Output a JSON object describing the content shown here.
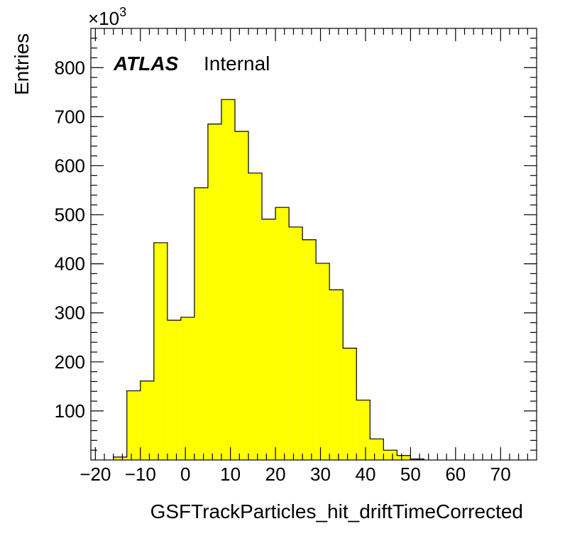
{
  "chart_data": {
    "type": "histogram",
    "xlabel": "GSFTrackParticles_hit_driftTimeCorrected",
    "ylabel": "Entries",
    "y_multiplier": "×10",
    "y_multiplier_exp": "3",
    "atlas_label": "ATLAS",
    "atlas_status": "Internal",
    "xlim": [
      -21,
      78
    ],
    "ylim": [
      0,
      880
    ],
    "x_ticks": [
      -20,
      -10,
      0,
      10,
      20,
      30,
      40,
      50,
      60,
      70
    ],
    "x_tick_labels": [
      "−20",
      "−10",
      "0",
      "10",
      "20",
      "30",
      "40",
      "50",
      "60",
      "70"
    ],
    "y_ticks": [
      100,
      200,
      300,
      400,
      500,
      600,
      700,
      800
    ],
    "y_tick_labels": [
      "100",
      "200",
      "300",
      "400",
      "500",
      "600",
      "700",
      "800"
    ],
    "fill_color": "#ffff00",
    "line_color": "#000000",
    "bin_width": 3,
    "bins": [
      {
        "x0": -16,
        "x1": -13,
        "value": 6
      },
      {
        "x0": -13,
        "x1": -10,
        "value": 141
      },
      {
        "x0": -10,
        "x1": -7,
        "value": 161
      },
      {
        "x0": -7,
        "x1": -4,
        "value": 443
      },
      {
        "x0": -4,
        "x1": -1,
        "value": 285
      },
      {
        "x0": -1,
        "x1": 2,
        "value": 291
      },
      {
        "x0": 2,
        "x1": 5,
        "value": 555
      },
      {
        "x0": 5,
        "x1": 8,
        "value": 685
      },
      {
        "x0": 8,
        "x1": 11,
        "value": 735
      },
      {
        "x0": 11,
        "x1": 14,
        "value": 670
      },
      {
        "x0": 14,
        "x1": 17,
        "value": 585
      },
      {
        "x0": 17,
        "x1": 20,
        "value": 491
      },
      {
        "x0": 20,
        "x1": 23,
        "value": 515
      },
      {
        "x0": 23,
        "x1": 26,
        "value": 475
      },
      {
        "x0": 26,
        "x1": 29,
        "value": 449
      },
      {
        "x0": 29,
        "x1": 32,
        "value": 401
      },
      {
        "x0": 32,
        "x1": 35,
        "value": 347
      },
      {
        "x0": 35,
        "x1": 38,
        "value": 228
      },
      {
        "x0": 38,
        "x1": 41,
        "value": 122
      },
      {
        "x0": 41,
        "x1": 44,
        "value": 43
      },
      {
        "x0": 44,
        "x1": 47,
        "value": 20
      },
      {
        "x0": 47,
        "x1": 50,
        "value": 9
      },
      {
        "x0": 50,
        "x1": 53,
        "value": 2
      }
    ]
  }
}
